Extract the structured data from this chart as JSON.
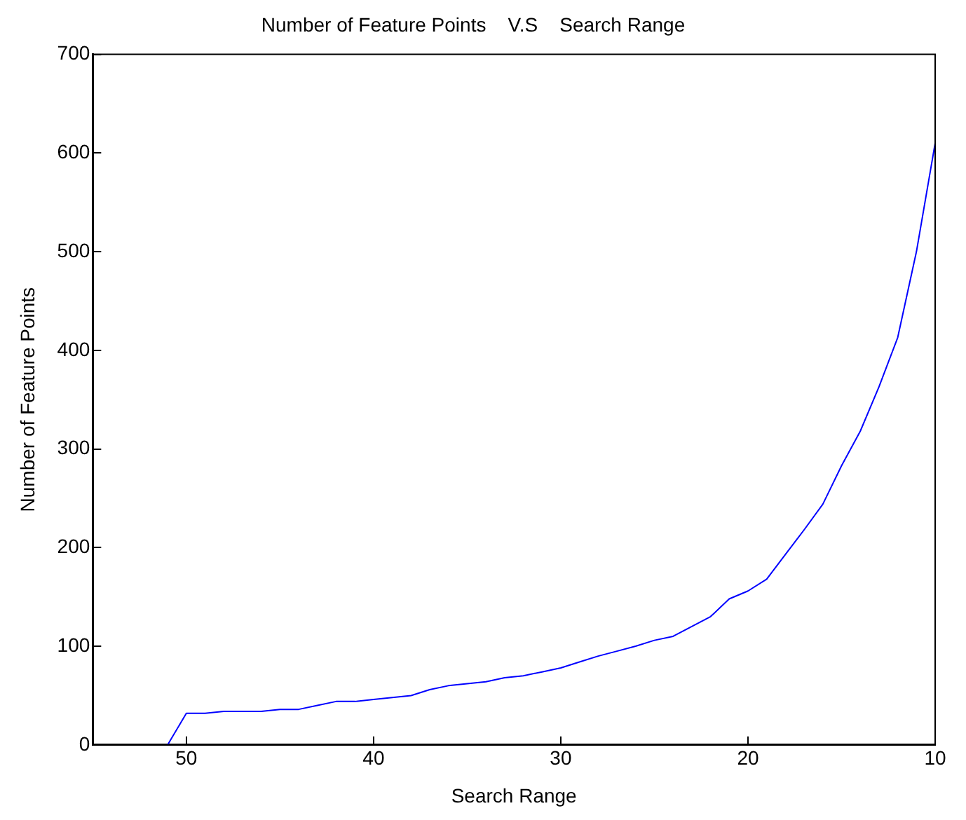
{
  "chart_data": {
    "type": "line",
    "title": "Number of Feature Points    V.S    Search Range",
    "xlabel": "Search Range",
    "ylabel": "Number of Feature Points",
    "x": [
      51,
      50,
      49,
      48,
      47,
      46,
      45,
      44,
      43,
      42,
      41,
      40,
      39,
      38,
      37,
      36,
      35,
      34,
      33,
      32,
      31,
      30,
      29,
      28,
      27,
      26,
      25,
      24,
      23,
      22,
      21,
      20,
      19,
      18,
      17,
      16,
      15,
      14,
      13,
      12,
      11,
      10
    ],
    "series": [
      {
        "color": "#0000ff",
        "values": [
          0,
          32,
          32,
          34,
          34,
          34,
          36,
          36,
          40,
          44,
          44,
          46,
          48,
          50,
          56,
          60,
          62,
          64,
          68,
          70,
          74,
          78,
          84,
          90,
          95,
          100,
          106,
          110,
          120,
          130,
          148,
          156,
          168,
          193,
          218,
          244,
          283,
          318,
          363,
          413,
          500,
          610
        ]
      }
    ],
    "xlim": [
      55,
      10
    ],
    "xticks": [
      50,
      40,
      30,
      20,
      10
    ],
    "ylim": [
      0,
      700
    ],
    "yticks": [
      0,
      100,
      200,
      300,
      400,
      500,
      600,
      700
    ],
    "grid": false,
    "legend": false,
    "marker": "none",
    "line_style": "solid"
  }
}
